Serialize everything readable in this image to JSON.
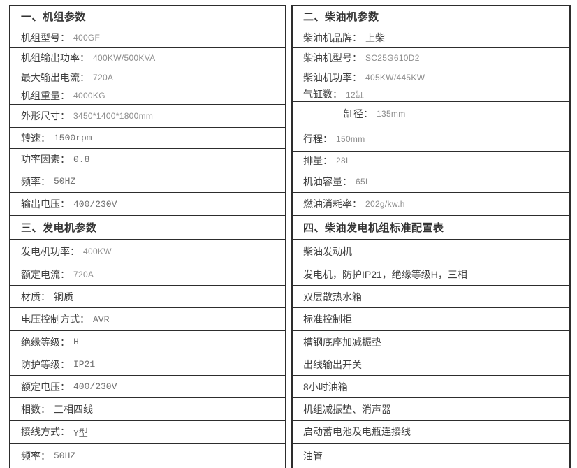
{
  "page": {
    "background": "#ffffff",
    "border_color": "#2d2d2d",
    "label_color": "#404040",
    "value_sans_color": "#8c8c8c",
    "value_mono_color": "#6e6e6e"
  },
  "tables": {
    "left": {
      "rows": [
        {
          "type": "header",
          "label": "一、机组参数"
        },
        {
          "type": "data",
          "label": "机组型号：",
          "value": "400GF",
          "value_style": "sans"
        },
        {
          "type": "data",
          "label": "机组输出功率：",
          "value": "400KW/500KVA",
          "value_style": "sans"
        },
        {
          "type": "data",
          "label": "最大输出电流：",
          "value": "720A",
          "value_style": "sans"
        },
        {
          "type": "data",
          "label": "机组重量：",
          "value": "4000KG",
          "value_style": "sans"
        },
        {
          "type": "data",
          "label": "外形尺寸：",
          "value": "3450*1400*1800mm",
          "value_style": "sans"
        },
        {
          "type": "data",
          "label": "转速：",
          "value": "1500rpm",
          "value_style": "mono"
        },
        {
          "type": "data",
          "label": "功率因素：",
          "value": "0.8",
          "value_style": "mono"
        },
        {
          "type": "data",
          "label": "频率：",
          "value": "50HZ",
          "value_style": "mono"
        },
        {
          "type": "data",
          "label": "输出电压：",
          "value": "400/230V",
          "value_style": "mono"
        },
        {
          "type": "header",
          "label": "三、发电机参数"
        },
        {
          "type": "data",
          "label": "发电机功率：",
          "value": "400KW",
          "value_style": "sans"
        },
        {
          "type": "data",
          "label": "额定电流：",
          "value": "720A",
          "value_style": "sans"
        },
        {
          "type": "data",
          "label": "材质：",
          "value": "铜质",
          "value_style": "cn"
        },
        {
          "type": "data",
          "label": "电压控制方式：",
          "value": "AVR",
          "value_style": "mono"
        },
        {
          "type": "data",
          "label": "绝缘等级：",
          "value": "H",
          "value_style": "mono"
        },
        {
          "type": "data",
          "label": "防护等级：",
          "value": "IP21",
          "value_style": "mono"
        },
        {
          "type": "data",
          "label": "额定电压：",
          "value": "400/230V",
          "value_style": "mono"
        },
        {
          "type": "data",
          "label": "相数：",
          "value": "三相四线",
          "value_style": "cn"
        },
        {
          "type": "data",
          "label": "接线方式：",
          "value": "Y型",
          "value_style": "mono"
        },
        {
          "type": "data",
          "label": "频率：",
          "value": "50HZ",
          "value_style": "mono"
        }
      ]
    },
    "right": {
      "rows": [
        {
          "type": "header",
          "label": "二、柴油机参数"
        },
        {
          "type": "data",
          "label": "柴油机品牌：",
          "value": "上柴",
          "value_style": "cn"
        },
        {
          "type": "data",
          "label": "柴油机型号：",
          "value": "SC25G610D2",
          "value_style": "sans"
        },
        {
          "type": "data",
          "label": "柴油机功率：",
          "value": "405KW/445KW",
          "value_style": "sans"
        },
        {
          "type": "data",
          "label": "气缸数：",
          "value": "12缸",
          "value_style": "sans"
        },
        {
          "type": "data",
          "label": "缸径：",
          "value": "135mm",
          "value_style": "sans",
          "indent": true
        },
        {
          "type": "data",
          "label": "行程：",
          "value": "150mm",
          "value_style": "sans"
        },
        {
          "type": "data",
          "label": "排量：",
          "value": "28L",
          "value_style": "sans"
        },
        {
          "type": "data",
          "label": "机油容量：",
          "value": "65L",
          "value_style": "sans"
        },
        {
          "type": "data",
          "label": "燃油消耗率：",
          "value": "202g/kw.h",
          "value_style": "sans"
        },
        {
          "type": "header",
          "label": "四、柴油发电机组标准配置表"
        },
        {
          "type": "data",
          "label": "柴油发动机",
          "value": "",
          "value_style": "cn"
        },
        {
          "type": "data",
          "label": "发电机，防护IP21，绝缘等级H，三相",
          "value": "",
          "value_style": "cn"
        },
        {
          "type": "data",
          "label": "双层散热水箱",
          "value": "",
          "value_style": "cn"
        },
        {
          "type": "data",
          "label": "标准控制柜",
          "value": "",
          "value_style": "cn"
        },
        {
          "type": "data",
          "label": "槽钢底座加减振垫",
          "value": "",
          "value_style": "cn"
        },
        {
          "type": "data",
          "label": "出线输出开关",
          "value": "",
          "value_style": "cn"
        },
        {
          "type": "data",
          "label": "8小时油箱",
          "value": "",
          "value_style": "cn"
        },
        {
          "type": "data",
          "label": "机组减振垫、消声器",
          "value": "",
          "value_style": "cn"
        },
        {
          "type": "data",
          "label": "启动蓄电池及电瓶连接线",
          "value": "",
          "value_style": "cn"
        },
        {
          "type": "data",
          "label": "油管",
          "value": "",
          "value_style": "cn"
        }
      ]
    }
  }
}
